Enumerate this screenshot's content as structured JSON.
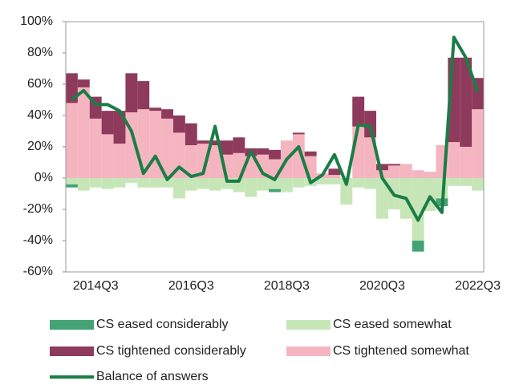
{
  "chart_data": {
    "type": "bar",
    "categories": [
      null,
      null,
      "2014Q3",
      null,
      null,
      null,
      null,
      null,
      null,
      null,
      "2016Q3",
      null,
      null,
      null,
      null,
      null,
      null,
      null,
      "2018Q3",
      null,
      null,
      null,
      null,
      null,
      null,
      null,
      "2020Q3",
      null,
      null,
      null,
      null,
      null,
      null,
      null,
      "2022Q3"
    ],
    "ylim": [
      -60,
      100
    ],
    "yticks": [
      {
        "value": -60,
        "label": "-60%"
      },
      {
        "value": -40,
        "label": "-40%"
      },
      {
        "value": -20,
        "label": "-20%"
      },
      {
        "value": 0,
        "label": "0%"
      },
      {
        "value": 20,
        "label": "20%"
      },
      {
        "value": 40,
        "label": "40%"
      },
      {
        "value": 60,
        "label": "60%"
      },
      {
        "value": 80,
        "label": "80%"
      },
      {
        "value": 100,
        "label": "100%"
      }
    ],
    "series": [
      {
        "name": "CS eased considerably",
        "type": "bar",
        "color": "#43a374",
        "values": [
          -2,
          0,
          0,
          0,
          0,
          0,
          0,
          0,
          0,
          0,
          0,
          0,
          0,
          0,
          0,
          0,
          0,
          -2,
          0,
          0,
          0,
          0,
          0,
          0,
          0,
          0,
          0,
          0,
          0,
          -7,
          0,
          -5,
          0,
          0,
          0
        ]
      },
      {
        "name": "CS eased somewhat",
        "type": "bar",
        "color": "#c6e6b7",
        "values": [
          -4,
          -8,
          -6,
          -7,
          -6,
          -3,
          -6,
          -6,
          -6,
          -13,
          -8,
          -7,
          -8,
          -7,
          -9,
          -12,
          -8,
          -7,
          -9,
          -6,
          -5,
          -4,
          -4,
          -17,
          -6,
          -7,
          -26,
          -20,
          -26,
          -40,
          -21,
          -13,
          -5,
          -5,
          -8
        ]
      },
      {
        "name": "CS tightened considerably",
        "type": "bar",
        "color": "#8e3a5c",
        "values": [
          19,
          5,
          14,
          15,
          21,
          25,
          18,
          2,
          6,
          11,
          14,
          2,
          3,
          9,
          10,
          5,
          4,
          6,
          0,
          1,
          3,
          0,
          4,
          0,
          19,
          17,
          4,
          1,
          0,
          0,
          0,
          0,
          54,
          57,
          20
        ]
      },
      {
        "name": "CS tightened somewhat",
        "type": "bar",
        "color": "#f4b5c0",
        "values": [
          48,
          58,
          38,
          28,
          22,
          42,
          44,
          43,
          38,
          29,
          21,
          22,
          21,
          15,
          16,
          14,
          15,
          12,
          24,
          28,
          14,
          3,
          2,
          0,
          33,
          26,
          5,
          8,
          9,
          5,
          4,
          21,
          23,
          20,
          44
        ]
      },
      {
        "name": "Balance of answers",
        "type": "line",
        "color": "#1b7d46",
        "values": [
          50,
          56,
          47,
          47,
          43,
          30,
          3,
          14,
          -1,
          7,
          1,
          3,
          33,
          -2,
          -2,
          17,
          3,
          -1,
          12,
          20,
          -3,
          2,
          15,
          -4,
          34,
          33,
          0,
          -11,
          -13,
          -27,
          -12,
          -22,
          90,
          77,
          55
        ]
      }
    ]
  }
}
